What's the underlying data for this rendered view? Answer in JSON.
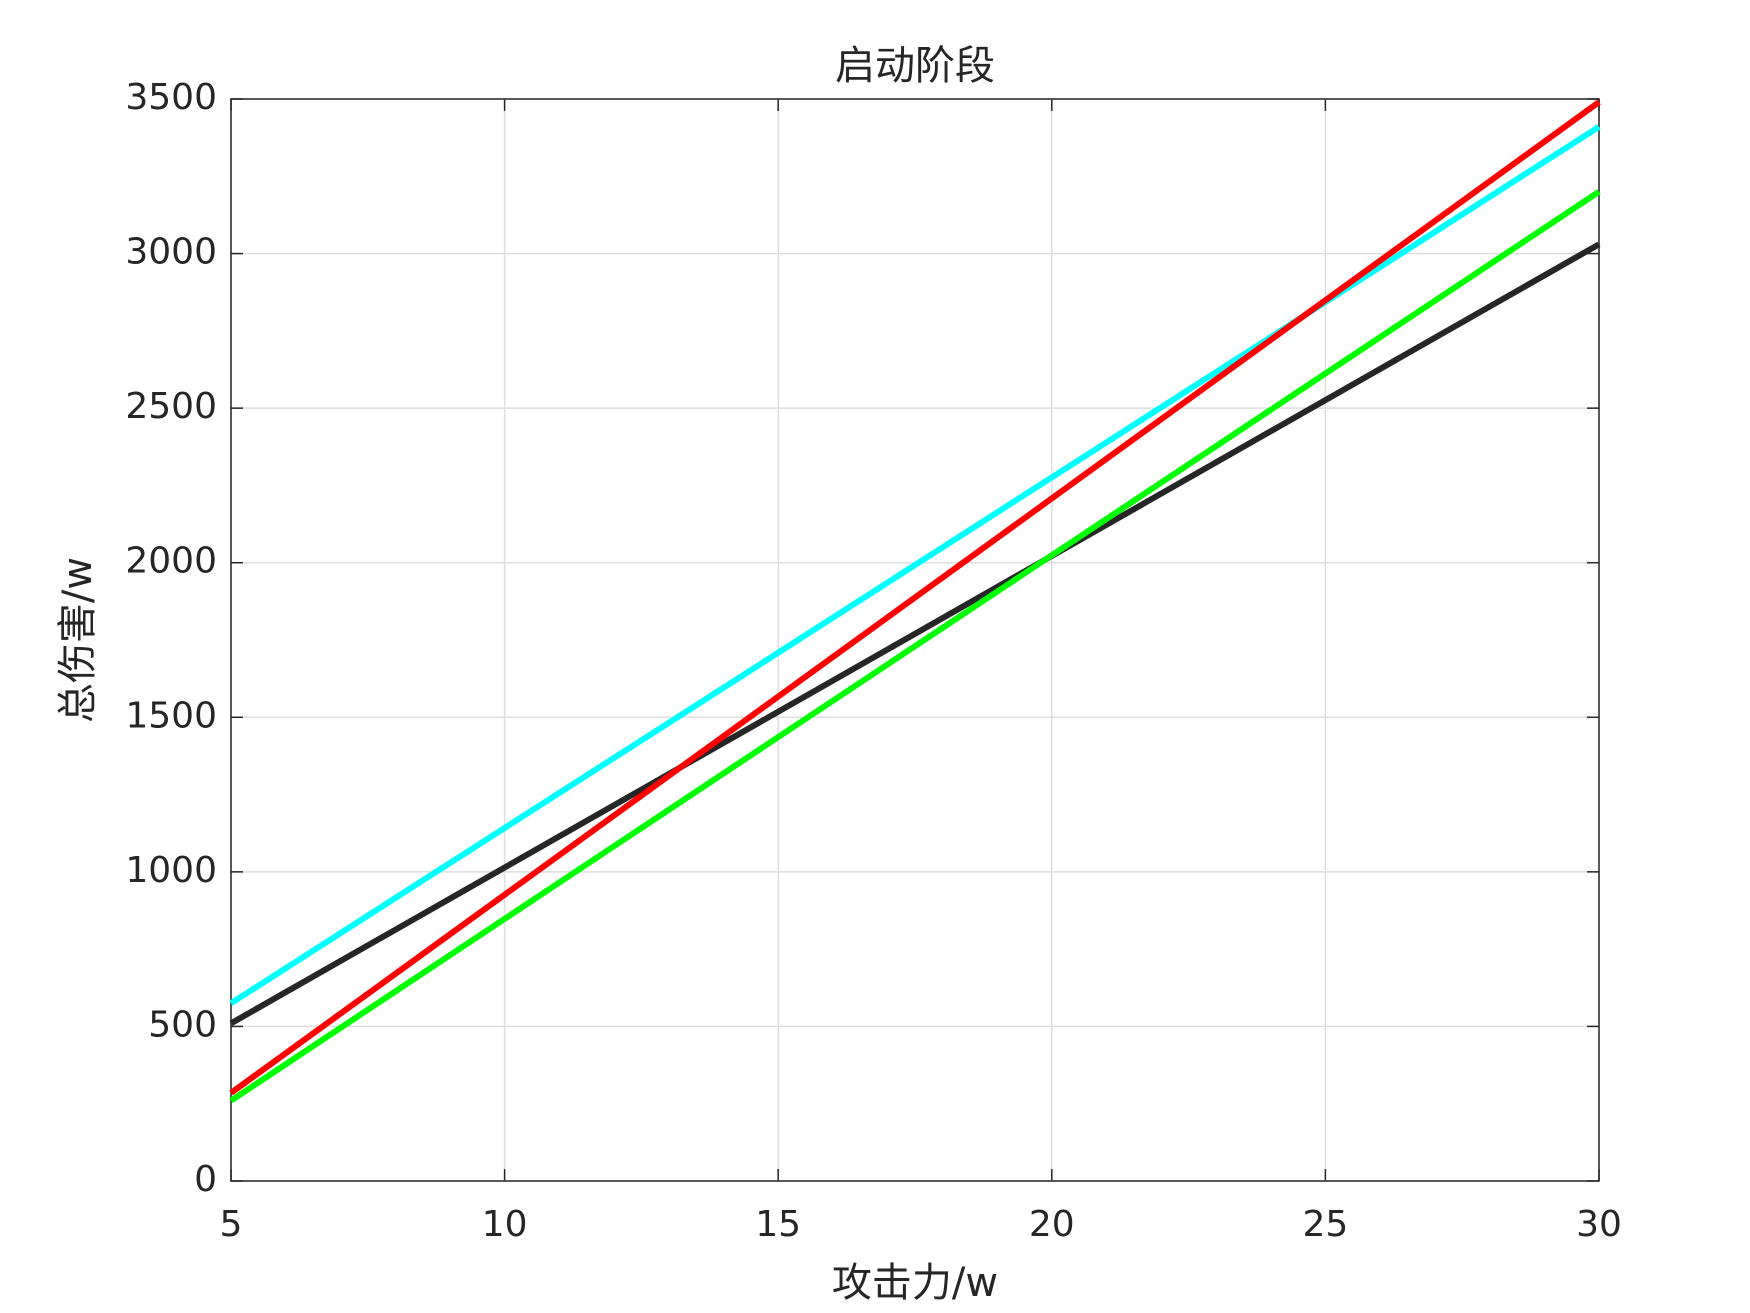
{
  "chart_data": {
    "type": "line",
    "title": "启动阶段",
    "xlabel": "攻击力/w",
    "ylabel": "总伤害/w",
    "x": [
      5,
      30
    ],
    "series": [
      {
        "color": "#262626",
        "values": [
          510,
          3030
        ]
      },
      {
        "color": "#00ffff",
        "values": [
          575,
          3410
        ]
      },
      {
        "color": "#ff0000",
        "values": [
          285,
          3490
        ]
      },
      {
        "color": "#00ff00",
        "values": [
          260,
          3200
        ]
      }
    ],
    "xlim": [
      5,
      30
    ],
    "xticks": [
      5,
      10,
      15,
      20,
      25,
      30
    ],
    "ylim": [
      0,
      3500
    ],
    "yticks": [
      0,
      500,
      1000,
      1500,
      2000,
      2500,
      3000,
      3500
    ],
    "grid": true
  }
}
